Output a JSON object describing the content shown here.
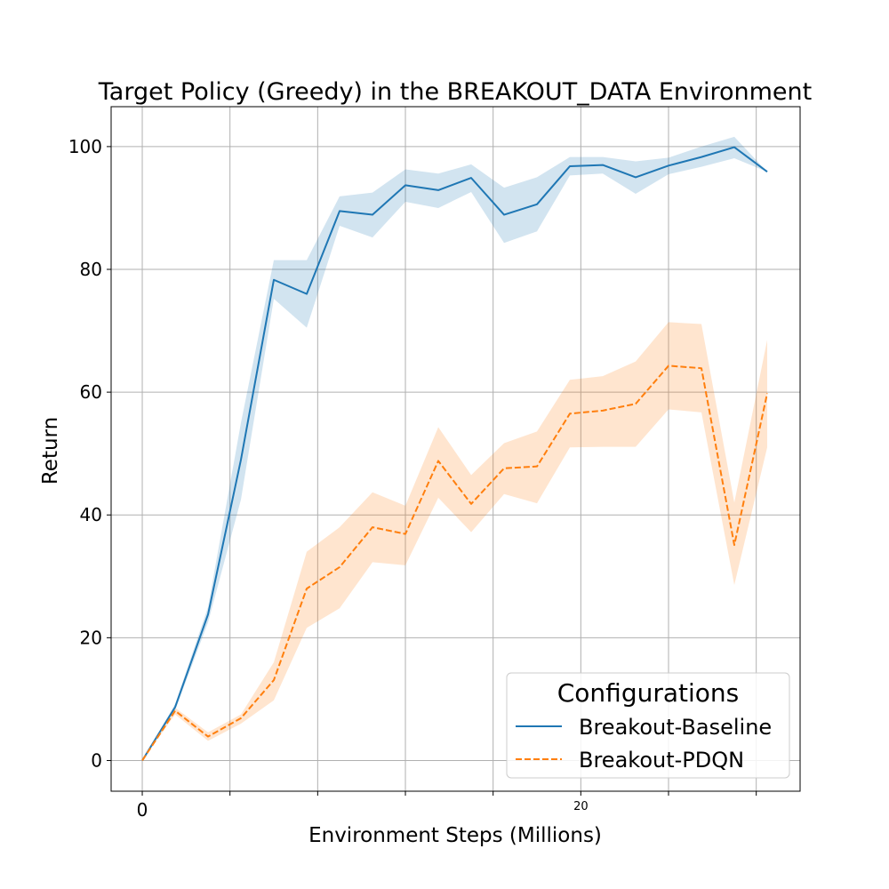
{
  "chart_data": {
    "type": "line",
    "title": "Target Policy (Greedy) in the BREAKOUT_DATA Environment",
    "xlabel": "Environment Steps (Millions)",
    "ylabel": "Return",
    "x_tick_labels": [
      {
        "value": 0,
        "label": "0"
      },
      {
        "value": 20,
        "label": "20"
      }
    ],
    "y_ticks": [
      0,
      20,
      40,
      60,
      80,
      100
    ],
    "xlim": [
      -1.42,
      30.0
    ],
    "ylim": [
      -5,
      106.5
    ],
    "grid": true,
    "legend": {
      "title": "Configurations",
      "position": "lower-right"
    },
    "x": [
      0,
      1.5,
      3.0,
      4.5,
      6.0,
      7.5,
      9.0,
      10.5,
      12.0,
      13.5,
      15.0,
      16.5,
      18.0,
      19.5,
      21.0,
      22.5,
      24.0,
      25.5,
      27.0,
      28.5
    ],
    "series": [
      {
        "name": "Breakout-Baseline",
        "color": "#1f77b4",
        "style": "solid",
        "values": [
          0,
          8.7,
          23.8,
          49.0,
          78.3,
          76.0,
          89.5,
          88.9,
          93.7,
          92.9,
          94.9,
          88.9,
          90.6,
          96.8,
          97.0,
          95.0,
          96.9,
          98.3,
          99.9,
          95.9
        ],
        "lower": [
          0,
          8.2,
          22.5,
          42.5,
          75.2,
          70.5,
          87.1,
          85.2,
          91.0,
          90.0,
          92.6,
          84.3,
          86.2,
          95.3,
          95.6,
          92.3,
          95.5,
          96.7,
          98.1,
          95.9
        ],
        "upper": [
          0,
          9.2,
          25.0,
          55.0,
          81.5,
          81.5,
          91.9,
          92.5,
          96.3,
          95.6,
          97.1,
          93.3,
          95.0,
          98.3,
          98.3,
          97.6,
          98.2,
          100.0,
          101.6,
          95.9
        ]
      },
      {
        "name": "Breakout-PDQN",
        "color": "#ff7f0e",
        "style": "dashed",
        "values": [
          0,
          8.1,
          3.9,
          6.9,
          13.1,
          28.0,
          31.5,
          38.0,
          36.9,
          48.8,
          41.8,
          47.6,
          47.9,
          56.5,
          57.0,
          58.1,
          64.3,
          63.9,
          35.1,
          59.8
        ],
        "lower": [
          0,
          7.5,
          3.2,
          6.0,
          9.8,
          21.6,
          24.8,
          32.3,
          31.8,
          42.8,
          37.2,
          43.4,
          41.9,
          51.0,
          51.1,
          51.1,
          57.2,
          56.7,
          28.6,
          51.0
        ],
        "upper": [
          0,
          8.6,
          4.6,
          7.5,
          16.0,
          34.0,
          38.0,
          43.7,
          41.5,
          54.3,
          46.5,
          51.7,
          53.6,
          62.0,
          62.6,
          65.0,
          71.4,
          71.1,
          42.0,
          68.5
        ]
      }
    ]
  }
}
